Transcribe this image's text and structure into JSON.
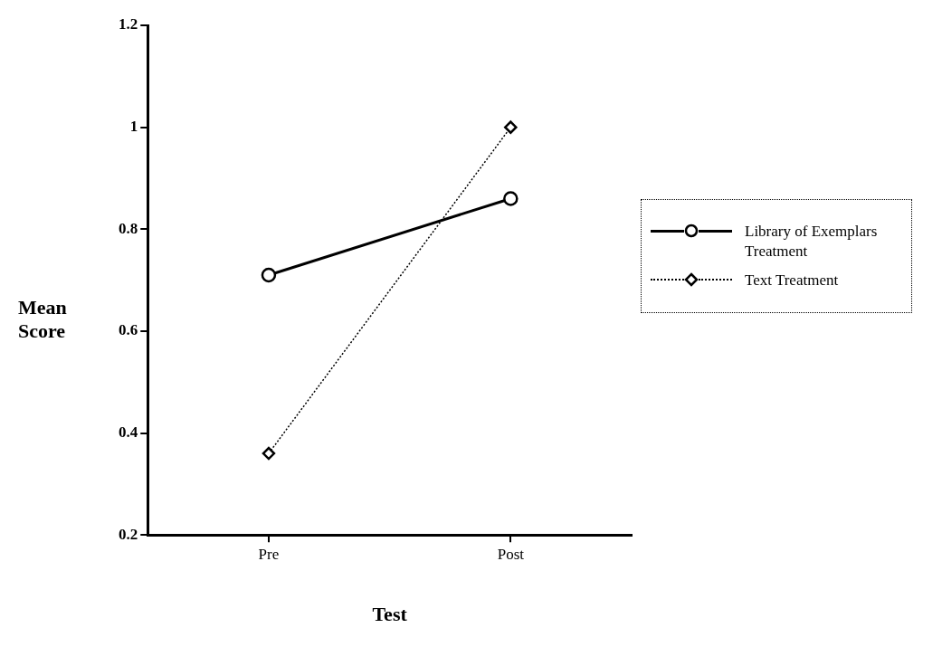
{
  "chart_data": {
    "type": "line",
    "xlabel": "Test",
    "ylabel": "Mean Score",
    "categories": [
      "Pre",
      "Post"
    ],
    "series": [
      {
        "name": "Library of Exemplars Treatment",
        "color": "#000000",
        "values": [
          0.71,
          0.86
        ],
        "marker": "circle",
        "line_style": "solid"
      },
      {
        "name": "Text Treatment",
        "color": "#000000",
        "values": [
          0.36,
          1.0
        ],
        "marker": "diamond",
        "line_style": "dotted"
      }
    ],
    "ylim": [
      0.2,
      1.2
    ],
    "yticks": [
      0.2,
      0.4,
      0.6,
      0.8,
      1,
      1.2
    ],
    "grid": false,
    "legend": "right"
  }
}
